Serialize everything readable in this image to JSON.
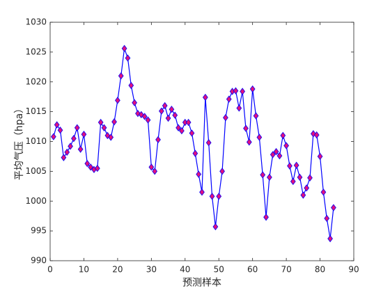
{
  "chart_data": {
    "type": "line",
    "x_label": "预测样本",
    "y_label": "平均气压（hpa）",
    "x": [
      1,
      2,
      3,
      4,
      5,
      6,
      7,
      8,
      9,
      10,
      11,
      12,
      13,
      14,
      15,
      16,
      17,
      18,
      19,
      20,
      21,
      22,
      23,
      24,
      25,
      26,
      27,
      28,
      29,
      30,
      31,
      32,
      33,
      34,
      35,
      36,
      37,
      38,
      39,
      40,
      41,
      42,
      43,
      44,
      45,
      46,
      47,
      48,
      49,
      50,
      51,
      52,
      53,
      54,
      55,
      56,
      57,
      58,
      59,
      60,
      61,
      62,
      63,
      64,
      65,
      66,
      67,
      68,
      69,
      70,
      71,
      72,
      73,
      74,
      75,
      76,
      77,
      78,
      79,
      80,
      81,
      82,
      83,
      84
    ],
    "series": [
      {
        "color": "#0000ff",
        "marker": "diamond",
        "marker_color": "#e0107f",
        "values": [
          1010.8,
          1012.8,
          1011.9,
          1007.3,
          1008.2,
          1009.2,
          1010.5,
          1012.3,
          1008.7,
          1011.2,
          1006.3,
          1005.7,
          1005.3,
          1005.5,
          1013.2,
          1012.3,
          1011.0,
          1010.7,
          1013.3,
          1016.9,
          1021.0,
          1025.6,
          1024.0,
          1019.4,
          1016.5,
          1014.7,
          1014.5,
          1014.2,
          1013.6,
          1005.7,
          1005.0,
          1010.3,
          1015.1,
          1016.0,
          1013.9,
          1015.4,
          1014.4,
          1012.3,
          1011.8,
          1013.2,
          1013.2,
          1011.4,
          1008.0,
          1004.5,
          1001.5,
          1017.4,
          1009.8,
          1000.8,
          995.7,
          1000.8,
          1005.0,
          1014.0,
          1017.1,
          1018.4,
          1018.5,
          1015.6,
          1018.4,
          1012.2,
          1009.9,
          1018.8,
          1014.3,
          1010.7,
          1004.4,
          997.3,
          1004.0,
          1007.8,
          1008.3,
          1007.6,
          1011.0,
          1009.3,
          1005.9,
          1003.3,
          1006.0,
          1004.0,
          1001.0,
          1002.2,
          1003.9,
          1011.3,
          1011.1,
          1007.5,
          1001.5,
          997.1,
          993.7,
          998.9
        ]
      }
    ],
    "xlim": [
      0,
      90
    ],
    "xticks": [
      0,
      10,
      20,
      30,
      40,
      50,
      60,
      70,
      80,
      90
    ],
    "ylim": [
      990,
      1030
    ],
    "yticks": [
      990,
      995,
      1000,
      1005,
      1010,
      1015,
      1020,
      1025,
      1030
    ]
  }
}
